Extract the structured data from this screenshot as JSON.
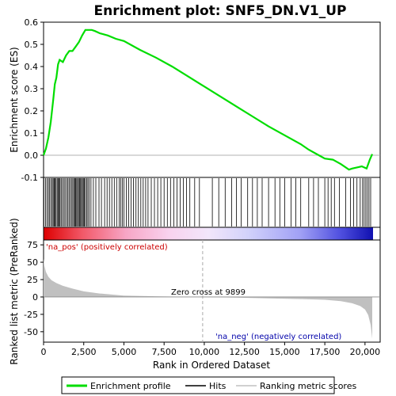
{
  "chart_data": {
    "type": "line",
    "title": "Enrichment plot: SNF5_DN.V1_UP",
    "es_panel": {
      "ylabel": "Enrichment score (ES)",
      "ylim": [
        -0.1,
        0.6
      ],
      "yticks": [
        "-0.1",
        "0.0",
        "0.1",
        "0.2",
        "0.3",
        "0.4",
        "0.5",
        "0.6"
      ],
      "ytick_values": [
        -0.1,
        0.0,
        0.1,
        0.2,
        0.3,
        0.4,
        0.5,
        0.6
      ],
      "x": [
        0,
        150,
        300,
        450,
        600,
        700,
        800,
        900,
        1000,
        1200,
        1400,
        1600,
        1800,
        2000,
        2200,
        2400,
        2600,
        2800,
        3000,
        3200,
        3500,
        4000,
        4500,
        5000,
        6000,
        7000,
        8000,
        9000,
        10000,
        11000,
        12000,
        13000,
        14000,
        15000,
        16000,
        16500,
        17000,
        17500,
        18000,
        18500,
        19000,
        19200,
        19500,
        19800,
        20100,
        20300,
        20450
      ],
      "y": [
        0.0,
        0.03,
        0.08,
        0.15,
        0.25,
        0.32,
        0.35,
        0.41,
        0.43,
        0.42,
        0.45,
        0.47,
        0.47,
        0.49,
        0.51,
        0.54,
        0.565,
        0.565,
        0.565,
        0.56,
        0.55,
        0.54,
        0.525,
        0.515,
        0.475,
        0.44,
        0.4,
        0.355,
        0.31,
        0.265,
        0.22,
        0.175,
        0.13,
        0.09,
        0.05,
        0.025,
        0.005,
        -0.015,
        -0.02,
        -0.04,
        -0.065,
        -0.06,
        -0.055,
        -0.05,
        -0.06,
        -0.02,
        0.005
      ]
    },
    "hits": [
      20,
      120,
      210,
      300,
      380,
      460,
      540,
      600,
      660,
      720,
      780,
      850,
      900,
      960,
      1020,
      1090,
      1160,
      1250,
      1330,
      1420,
      1500,
      1580,
      1660,
      1740,
      1820,
      1880,
      1940,
      2000,
      2060,
      2120,
      2180,
      2240,
      2300,
      2360,
      2420,
      2480,
      2540,
      2600,
      2680,
      2760,
      2850,
      2950,
      3100,
      3250,
      3450,
      3600,
      3800,
      3950,
      4100,
      4250,
      4400,
      4550,
      4700,
      4800,
      4900,
      5000,
      5150,
      5300,
      5450,
      5600,
      5750,
      5900,
      6050,
      6200,
      6350,
      6500,
      6700,
      6900,
      7100,
      7300,
      7500,
      7700,
      7900,
      8100,
      8300,
      8500,
      8700,
      8900,
      9100,
      9400,
      9700,
      10500,
      10900,
      11300,
      11700,
      12000,
      12300,
      12700,
      13000,
      13300,
      13600,
      14000,
      14400,
      14700,
      15000,
      15400,
      15700,
      16000,
      16500,
      16800,
      17100,
      17500,
      17700,
      17900,
      18100,
      18400,
      18800,
      19100,
      19300,
      19500,
      19700,
      19850,
      19950,
      20050,
      20150,
      20250,
      20350
    ],
    "metric_panel": {
      "ylabel": "Ranked list metric (PreRanked)",
      "xlabel": "Rank in Ordered Dataset",
      "ylim": [
        -65,
        82
      ],
      "yticks": [
        "75",
        "50",
        "25",
        "0",
        "-25",
        "-50"
      ],
      "ytick_values": [
        75,
        50,
        25,
        0,
        -25,
        -50
      ],
      "xlim": [
        0,
        20500
      ],
      "xticks": [
        "0",
        "2,500",
        "5,000",
        "7,500",
        "10,000",
        "12,500",
        "15,000",
        "17,500",
        "20,000"
      ],
      "xtick_values": [
        0,
        2500,
        5000,
        7500,
        10000,
        12500,
        15000,
        17500,
        20000
      ],
      "x": [
        0,
        50,
        150,
        300,
        500,
        800,
        1200,
        1800,
        2500,
        3500,
        5000,
        7000,
        9899,
        12000,
        14000,
        16000,
        17500,
        18500,
        19200,
        19700,
        20000,
        20200,
        20350,
        20450
      ],
      "y": [
        55,
        45,
        36,
        29,
        24,
        20,
        16,
        12,
        8,
        5,
        2,
        1,
        0,
        -1,
        -2,
        -3,
        -4,
        -6,
        -9,
        -13,
        -18,
        -26,
        -40,
        -60
      ]
    },
    "pos_label": "'na_pos' (positively correlated)",
    "neg_label": "'na_neg' (negatively correlated)",
    "zero_cross_label": "Zero cross at 9899",
    "zero_cross": 9899,
    "legend": {
      "placement": "bottom",
      "items": [
        "Enrichment profile",
        "Hits",
        "Ranking metric scores"
      ]
    },
    "colors": {
      "profile": "#00dd00",
      "hits": "#000000",
      "metric": "#c0c0c0",
      "pos_label": "#cc0000",
      "neg_label": "#0000aa"
    }
  }
}
